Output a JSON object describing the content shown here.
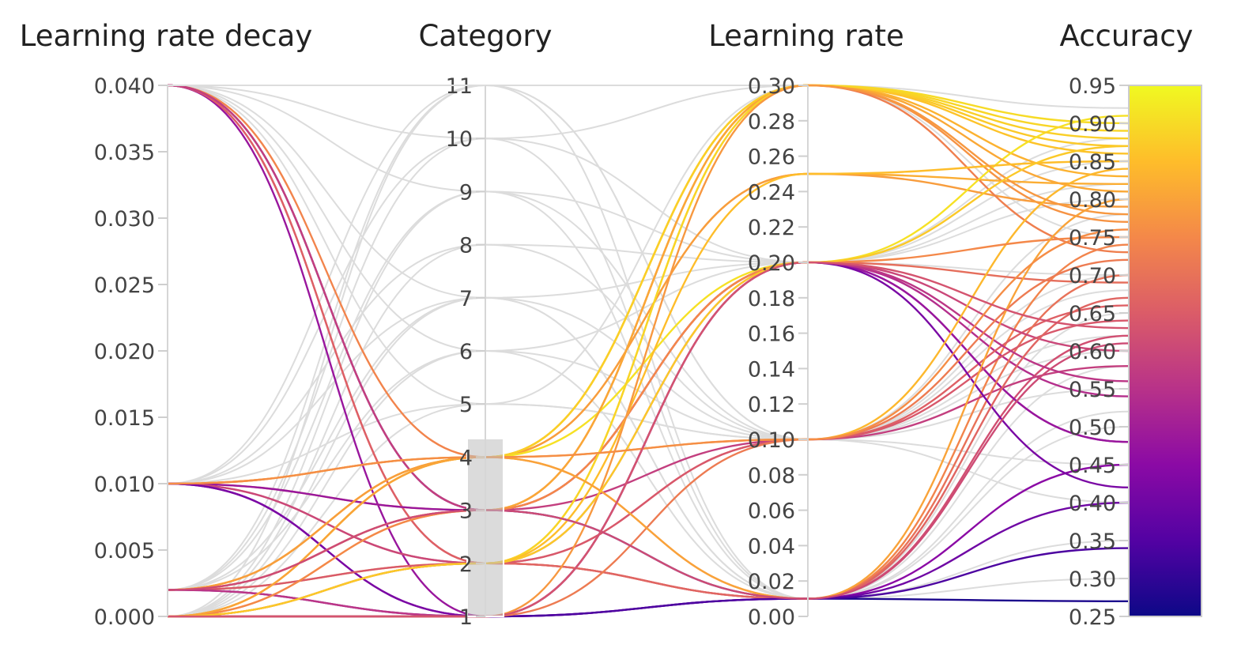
{
  "chart_data": {
    "type": "parallel-coordinates",
    "title": "",
    "dimensions": [
      {
        "key": "decay",
        "label": "Learning rate decay",
        "range": [
          0,
          0.04
        ],
        "ticks": [
          "0.000",
          "0.005",
          "0.010",
          "0.015",
          "0.020",
          "0.025",
          "0.030",
          "0.035",
          "0.040"
        ]
      },
      {
        "key": "category",
        "label": "Category",
        "range": [
          1,
          11
        ],
        "ticks": [
          "1",
          "2",
          "3",
          "4",
          "5",
          "6",
          "7",
          "8",
          "9",
          "10",
          "11"
        ],
        "brush": [
          1,
          4.35
        ]
      },
      {
        "key": "lr",
        "label": "Learning rate",
        "range": [
          0,
          0.3
        ],
        "ticks": [
          "0.00",
          "0.02",
          "0.04",
          "0.06",
          "0.08",
          "0.10",
          "0.12",
          "0.14",
          "0.16",
          "0.18",
          "0.20",
          "0.22",
          "0.24",
          "0.26",
          "0.28",
          "0.30"
        ]
      },
      {
        "key": "accuracy",
        "label": "Accuracy",
        "range": [
          0.25,
          0.95
        ],
        "ticks": [
          "0.25",
          "0.30",
          "0.35",
          "0.40",
          "0.45",
          "0.50",
          "0.55",
          "0.60",
          "0.65",
          "0.70",
          "0.75",
          "0.80",
          "0.85",
          "0.90",
          "0.95"
        ]
      }
    ],
    "colorscale": {
      "variable": "accuracy",
      "min": 0.25,
      "max": 0.95,
      "stops": [
        "#0d0887",
        "#5302a3",
        "#8b0aa5",
        "#b83289",
        "#db5c68",
        "#f48849",
        "#febd2a",
        "#f0f921"
      ]
    },
    "selected_runs": [
      [
        0.04,
        4,
        0.01,
        0.74
      ],
      [
        0.04,
        3,
        0.01,
        0.27
      ],
      [
        0.04,
        3,
        0.2,
        0.54
      ],
      [
        0.04,
        2,
        0.01,
        0.62
      ],
      [
        0.04,
        1,
        0.2,
        0.48
      ],
      [
        0.04,
        2,
        0.1,
        0.66
      ],
      [
        0.04,
        3,
        0.1,
        0.58
      ],
      [
        0.01,
        4,
        0.3,
        0.87
      ],
      [
        0.01,
        4,
        0.25,
        0.82
      ],
      [
        0.01,
        3,
        0.3,
        0.77
      ],
      [
        0.01,
        3,
        0.2,
        0.48
      ],
      [
        0.01,
        2,
        0.01,
        0.7
      ],
      [
        0.01,
        2,
        0.2,
        0.6
      ],
      [
        0.01,
        1,
        0.01,
        0.45
      ],
      [
        0.01,
        1,
        0.2,
        0.42
      ],
      [
        0.002,
        4,
        0.3,
        0.9
      ],
      [
        0.002,
        4,
        0.3,
        0.83
      ],
      [
        0.002,
        4,
        0.25,
        0.79
      ],
      [
        0.002,
        3,
        0.3,
        0.73
      ],
      [
        0.002,
        3,
        0.2,
        0.69
      ],
      [
        0.002,
        2,
        0.3,
        0.86
      ],
      [
        0.002,
        2,
        0.1,
        0.64
      ],
      [
        0.002,
        1,
        0.01,
        0.4
      ],
      [
        0.002,
        1,
        0.2,
        0.56
      ],
      [
        0.0,
        4,
        0.2,
        0.91
      ],
      [
        0.0,
        4,
        0.3,
        0.88
      ],
      [
        0.0,
        4,
        0.1,
        0.84
      ],
      [
        0.0,
        3,
        0.3,
        0.81
      ],
      [
        0.0,
        3,
        0.2,
        0.75
      ],
      [
        0.0,
        2,
        0.3,
        0.89
      ],
      [
        0.0,
        2,
        0.25,
        0.85
      ],
      [
        0.0,
        2,
        0.01,
        0.67
      ],
      [
        0.0,
        1,
        0.3,
        0.78
      ],
      [
        0.0,
        1,
        0.01,
        0.34
      ],
      [
        0.0,
        1,
        0.1,
        0.72
      ],
      [
        0.0,
        4,
        0.01,
        0.8
      ],
      [
        0.0,
        2,
        0.2,
        0.87
      ],
      [
        0.002,
        3,
        0.01,
        0.61
      ],
      [
        0.01,
        4,
        0.1,
        0.76
      ],
      [
        0.0,
        1,
        0.2,
        0.63
      ]
    ],
    "unselected_runs": [
      [
        0.04,
        11,
        0.1,
        0.6
      ],
      [
        0.04,
        7,
        0.2,
        0.8
      ],
      [
        0.04,
        9,
        0.01,
        0.5
      ],
      [
        0.04,
        5,
        0.3,
        0.9
      ],
      [
        0.04,
        10,
        0.2,
        0.7
      ],
      [
        0.01,
        11,
        0.1,
        0.4
      ],
      [
        0.01,
        7,
        0.01,
        0.65
      ],
      [
        0.01,
        8,
        0.2,
        0.85
      ],
      [
        0.01,
        5,
        0.1,
        0.55
      ],
      [
        0.002,
        10,
        0.3,
        0.75
      ],
      [
        0.002,
        7,
        0.1,
        0.45
      ],
      [
        0.002,
        6,
        0.2,
        0.88
      ],
      [
        0.002,
        11,
        0.01,
        0.35
      ],
      [
        0.0,
        9,
        0.2,
        0.82
      ],
      [
        0.0,
        7,
        0.01,
        0.58
      ],
      [
        0.0,
        5,
        0.1,
        0.7
      ],
      [
        0.0,
        11,
        0.3,
        0.92
      ],
      [
        0.0,
        6,
        0.01,
        0.3
      ],
      [
        0.0,
        8,
        0.1,
        0.68
      ],
      [
        0.01,
        10,
        0.01,
        0.52
      ],
      [
        0.002,
        9,
        0.1,
        0.62
      ],
      [
        0.04,
        6,
        0.1,
        0.78
      ]
    ]
  }
}
